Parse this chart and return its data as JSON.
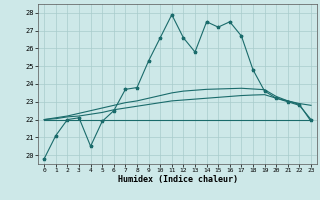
{
  "title": "",
  "xlabel": "Humidex (Indice chaleur)",
  "xlim": [
    -0.5,
    23.5
  ],
  "ylim": [
    19.5,
    28.5
  ],
  "yticks": [
    20,
    21,
    22,
    23,
    24,
    25,
    26,
    27,
    28
  ],
  "xticks": [
    0,
    1,
    2,
    3,
    4,
    5,
    6,
    7,
    8,
    9,
    10,
    11,
    12,
    13,
    14,
    15,
    16,
    17,
    18,
    19,
    20,
    21,
    22,
    23
  ],
  "bg_color": "#cde8e8",
  "line_color": "#1a6b6b",
  "grid_color": "#a8cccc",
  "line1": [
    19.8,
    21.1,
    22.0,
    22.1,
    20.5,
    21.9,
    22.5,
    23.7,
    23.8,
    25.3,
    26.6,
    27.9,
    26.6,
    25.8,
    27.5,
    27.2,
    27.5,
    26.7,
    24.8,
    23.6,
    23.2,
    23.0,
    22.8,
    22.0
  ],
  "line2": [
    22.0,
    22.0,
    22.0,
    22.0,
    22.0,
    22.0,
    22.0,
    22.0,
    22.0,
    22.0,
    22.0,
    22.0,
    22.0,
    22.0,
    22.0,
    22.0,
    22.0,
    22.0,
    22.0,
    22.0,
    22.0,
    22.0,
    22.0,
    22.0
  ],
  "line3": [
    22.0,
    22.05,
    22.15,
    22.2,
    22.3,
    22.4,
    22.55,
    22.65,
    22.75,
    22.85,
    22.95,
    23.05,
    23.1,
    23.15,
    23.2,
    23.25,
    23.3,
    23.35,
    23.38,
    23.4,
    23.2,
    23.05,
    22.9,
    22.8
  ],
  "line4": [
    22.0,
    22.1,
    22.2,
    22.35,
    22.5,
    22.65,
    22.8,
    22.95,
    23.05,
    23.2,
    23.35,
    23.5,
    23.6,
    23.65,
    23.7,
    23.72,
    23.74,
    23.76,
    23.72,
    23.68,
    23.3,
    23.05,
    22.85,
    21.9
  ]
}
